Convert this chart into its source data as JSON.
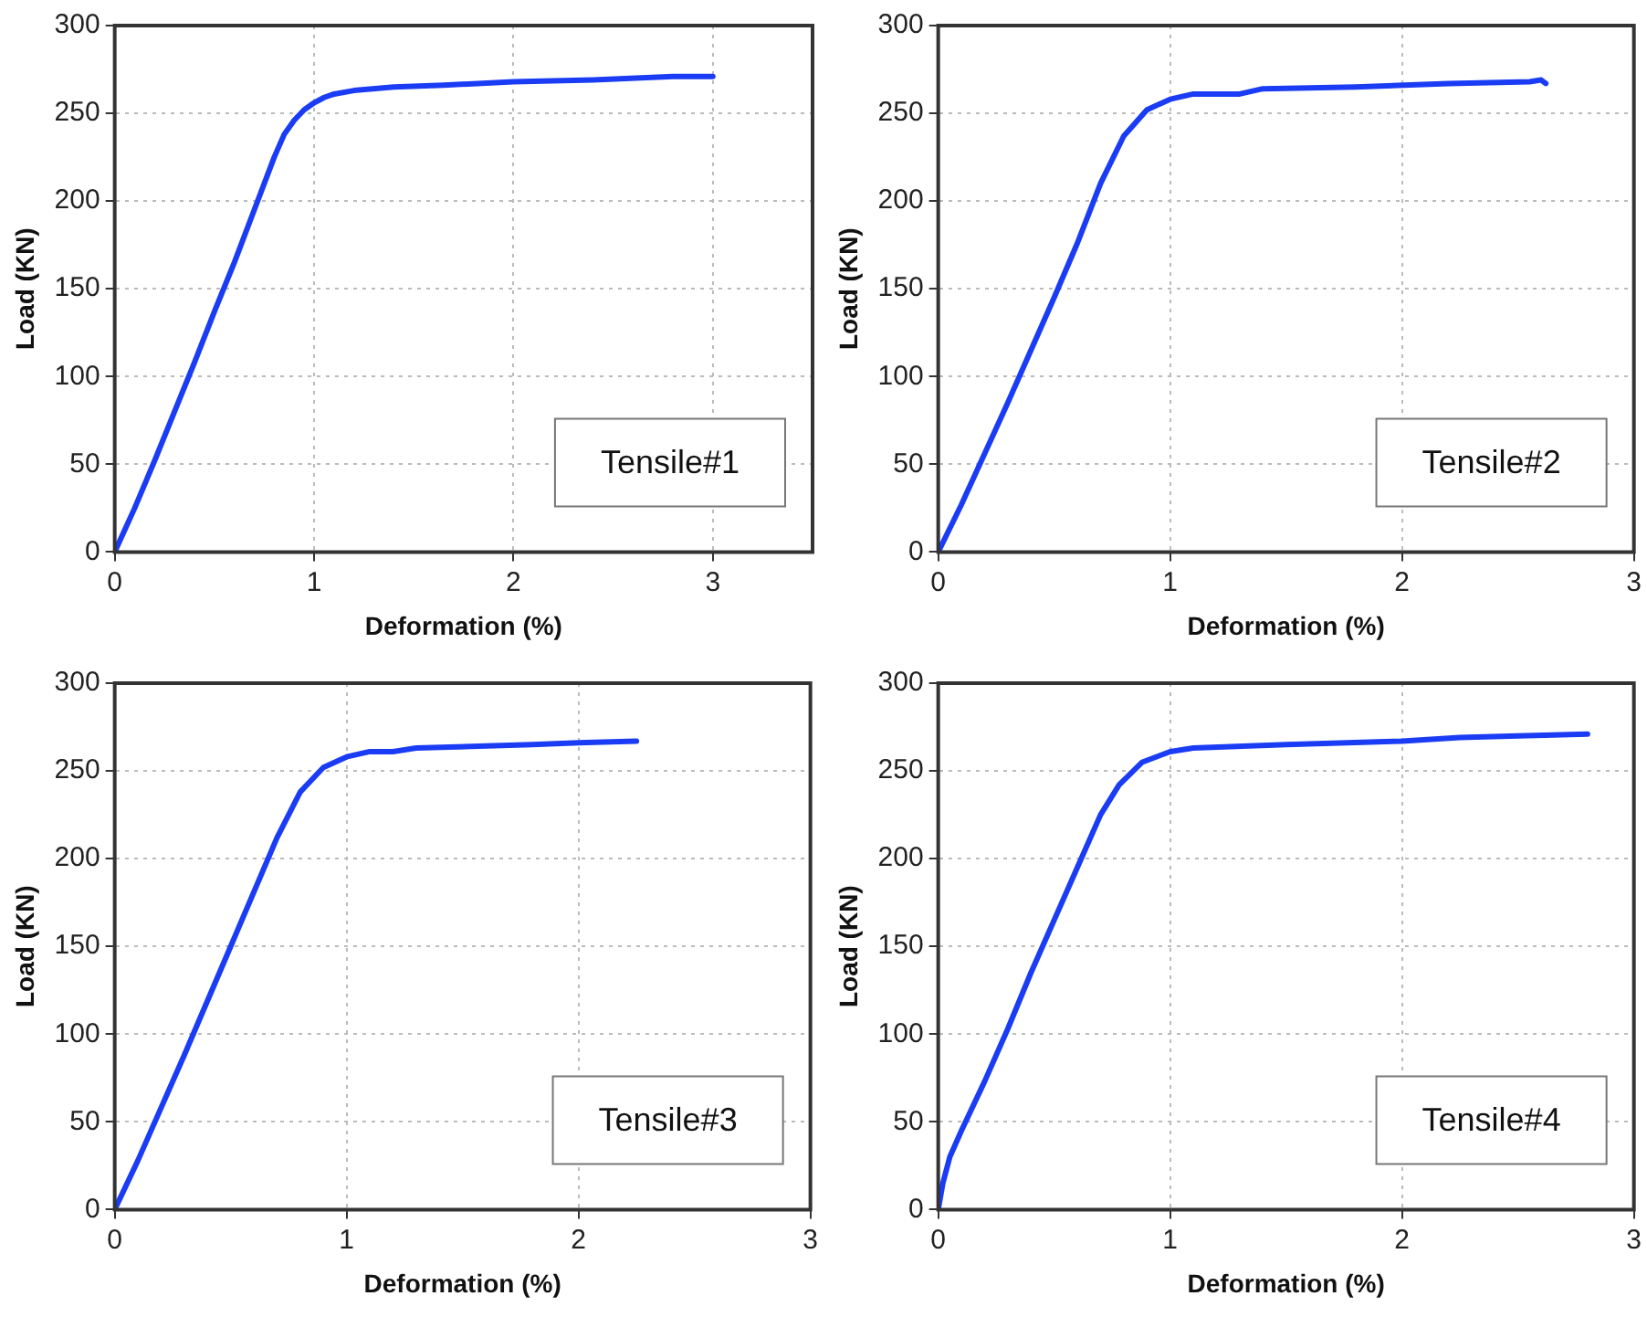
{
  "chart_data": [
    {
      "type": "line",
      "xlabel": "Deformation (%)",
      "ylabel": "Load (KN)",
      "annotations": [
        "Tensile#1"
      ],
      "xlim": [
        0,
        3.5
      ],
      "xticks": [
        0,
        1,
        2,
        3
      ],
      "ylim": [
        0,
        300
      ],
      "yticks": [
        0,
        50,
        100,
        150,
        200,
        250,
        300
      ],
      "grid": true,
      "marker": "none",
      "line_style": "solid",
      "series": [
        {
          "color": "#1a3cf5",
          "x": [
            0,
            0.1,
            0.2,
            0.3,
            0.4,
            0.5,
            0.6,
            0.7,
            0.8,
            0.85,
            0.9,
            0.95,
            1.0,
            1.05,
            1.1,
            1.2,
            1.4,
            1.65,
            2.0,
            2.4,
            2.8,
            3.0
          ],
          "values": [
            0,
            25,
            52,
            80,
            108,
            137,
            165,
            195,
            225,
            238,
            246,
            252,
            256,
            259,
            261,
            263,
            265,
            266,
            268,
            269,
            271,
            271
          ]
        }
      ]
    },
    {
      "type": "line",
      "xlabel": "Deformation (%)",
      "ylabel": "Load (KN)",
      "annotations": [
        "Tensile#2"
      ],
      "xlim": [
        0,
        3
      ],
      "xticks": [
        0,
        1,
        2,
        3
      ],
      "ylim": [
        0,
        300
      ],
      "yticks": [
        0,
        50,
        100,
        150,
        200,
        250,
        300
      ],
      "grid": true,
      "marker": "none",
      "line_style": "solid",
      "series": [
        {
          "color": "#1a3cf5",
          "x": [
            0,
            0.1,
            0.3,
            0.5,
            0.6,
            0.7,
            0.8,
            0.9,
            1.0,
            1.1,
            1.3,
            1.4,
            1.8,
            2.2,
            2.55,
            2.6,
            2.62
          ],
          "values": [
            0,
            27,
            85,
            145,
            176,
            210,
            237,
            252,
            258,
            261,
            261,
            264,
            265,
            267,
            268,
            269,
            267
          ]
        }
      ]
    },
    {
      "type": "line",
      "xlabel": "Deformation (%)",
      "ylabel": "Load (KN)",
      "annotations": [
        "Tensile#3"
      ],
      "xlim": [
        0,
        3
      ],
      "xticks": [
        0,
        1,
        2,
        3
      ],
      "ylim": [
        0,
        300
      ],
      "yticks": [
        0,
        50,
        100,
        150,
        200,
        250,
        300
      ],
      "grid": true,
      "marker": "none",
      "line_style": "solid",
      "series": [
        {
          "color": "#1a3cf5",
          "x": [
            0,
            0.1,
            0.3,
            0.5,
            0.7,
            0.8,
            0.9,
            1.0,
            1.1,
            1.2,
            1.3,
            1.8,
            2.0,
            2.25
          ],
          "values": [
            0,
            28,
            88,
            150,
            212,
            238,
            252,
            258,
            261,
            261,
            263,
            265,
            266,
            267
          ]
        }
      ]
    },
    {
      "type": "line",
      "xlabel": "Deformation (%)",
      "ylabel": "Load (KN)",
      "annotations": [
        "Tensile#4"
      ],
      "xlim": [
        0,
        3
      ],
      "xticks": [
        0,
        1,
        2,
        3
      ],
      "ylim": [
        0,
        300
      ],
      "yticks": [
        0,
        50,
        100,
        150,
        200,
        250,
        300
      ],
      "grid": true,
      "marker": "none",
      "line_style": "solid",
      "series": [
        {
          "color": "#1a3cf5",
          "x": [
            0,
            0.02,
            0.05,
            0.1,
            0.2,
            0.3,
            0.4,
            0.5,
            0.6,
            0.7,
            0.78,
            0.88,
            1.0,
            1.1,
            1.5,
            2.0,
            2.25,
            2.5,
            2.8
          ],
          "values": [
            0,
            15,
            30,
            45,
            73,
            103,
            135,
            165,
            195,
            225,
            242,
            255,
            261,
            263,
            265,
            267,
            269,
            270,
            271
          ]
        }
      ]
    }
  ]
}
